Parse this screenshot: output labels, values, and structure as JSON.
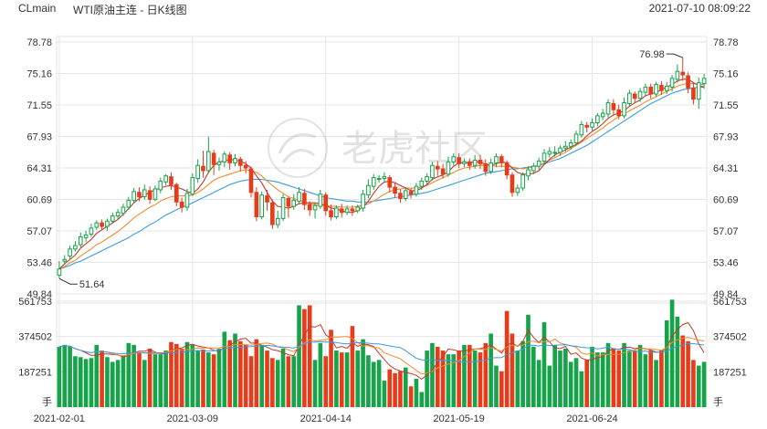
{
  "header": {
    "symbol": "CLmain",
    "title": "WTI原油主连 - 日K线图",
    "datetime": "2021-07-10 08:09:22"
  },
  "watermark": {
    "text": "老虎社区",
    "icon": "tiger-logo-icon"
  },
  "colors": {
    "up": "#16a34a",
    "down": "#e83b1a",
    "ma5": "#c0392b",
    "ma10": "#f08c2e",
    "ma20": "#3b9be0",
    "grid": "#e6e6e6",
    "text": "#333333"
  },
  "chart_data": [
    {
      "type": "candlestick",
      "yticks": [
        "78.78",
        "75.16",
        "71.55",
        "67.93",
        "64.31",
        "60.69",
        "57.07",
        "53.46",
        "49.84"
      ],
      "ylim": [
        49.84,
        78.78
      ],
      "xticks": [
        "2021-02-01",
        "2021-03-09",
        "2021-04-14",
        "2021-05-19",
        "2021-06-24"
      ],
      "annotations": {
        "high_label": "76.98",
        "low_label": "51.64"
      },
      "candles": [
        [
          52.0,
          52.7,
          51.6,
          53.6
        ],
        [
          53.6,
          53.8,
          53.2,
          54.3
        ],
        [
          54.2,
          55.0,
          53.8,
          55.4
        ],
        [
          55.0,
          55.4,
          54.7,
          55.9
        ],
        [
          55.5,
          56.4,
          55.2,
          56.9
        ],
        [
          56.3,
          56.6,
          55.8,
          57.1
        ],
        [
          56.7,
          57.4,
          56.4,
          57.9
        ],
        [
          57.5,
          58.0,
          57.2,
          58.3
        ],
        [
          58.0,
          57.6,
          57.2,
          58.4
        ],
        [
          57.6,
          58.2,
          57.1,
          58.5
        ],
        [
          58.2,
          58.8,
          57.9,
          59.2
        ],
        [
          58.8,
          59.2,
          58.4,
          59.6
        ],
        [
          59.1,
          59.8,
          58.8,
          60.2
        ],
        [
          59.8,
          60.6,
          59.5,
          61.0
        ],
        [
          60.6,
          61.6,
          60.3,
          62.0
        ],
        [
          61.5,
          61.0,
          60.5,
          62.1
        ],
        [
          61.0,
          61.8,
          60.7,
          62.4
        ],
        [
          61.7,
          60.7,
          60.2,
          62.2
        ],
        [
          60.7,
          61.9,
          60.5,
          62.3
        ],
        [
          61.8,
          62.8,
          61.4,
          63.2
        ],
        [
          62.7,
          63.4,
          62.3,
          63.6
        ],
        [
          63.3,
          62.4,
          61.8,
          63.8
        ],
        [
          62.4,
          60.4,
          59.9,
          62.6
        ],
        [
          60.4,
          59.8,
          59.2,
          60.9
        ],
        [
          59.8,
          61.4,
          59.4,
          61.9
        ],
        [
          61.3,
          63.2,
          61.1,
          63.7
        ],
        [
          63.1,
          64.6,
          62.6,
          65.3
        ],
        [
          64.5,
          64.0,
          63.2,
          66.3
        ],
        [
          64.0,
          66.2,
          63.7,
          67.9
        ],
        [
          66.0,
          64.7,
          63.5,
          66.4
        ],
        [
          64.7,
          65.0,
          64.0,
          65.5
        ],
        [
          65.0,
          65.9,
          64.4,
          66.2
        ],
        [
          65.8,
          64.9,
          64.1,
          66.1
        ],
        [
          64.9,
          65.4,
          64.5,
          65.9
        ],
        [
          65.3,
          64.6,
          63.9,
          65.6
        ],
        [
          64.6,
          64.3,
          63.7,
          65.1
        ],
        [
          64.2,
          61.5,
          60.9,
          64.5
        ],
        [
          61.5,
          58.7,
          58.2,
          62.1
        ],
        [
          58.7,
          61.2,
          58.4,
          61.6
        ],
        [
          61.1,
          60.4,
          59.4,
          61.8
        ],
        [
          60.3,
          57.8,
          57.3,
          60.7
        ],
        [
          57.8,
          58.5,
          57.4,
          59.4
        ],
        [
          58.5,
          60.9,
          58.2,
          61.3
        ],
        [
          60.8,
          59.9,
          58.6,
          61.0
        ],
        [
          59.9,
          60.6,
          59.5,
          61.3
        ],
        [
          60.5,
          61.5,
          60.2,
          62.1
        ],
        [
          61.4,
          60.1,
          59.5,
          61.9
        ],
        [
          60.1,
          59.5,
          58.8,
          60.5
        ],
        [
          59.5,
          60.0,
          58.5,
          60.3
        ],
        [
          59.9,
          61.3,
          59.6,
          61.8
        ],
        [
          61.2,
          59.4,
          58.8,
          61.5
        ],
        [
          59.4,
          58.7,
          58.3,
          60.1
        ],
        [
          58.7,
          59.7,
          58.4,
          60.0
        ],
        [
          59.6,
          59.2,
          58.6,
          60.2
        ],
        [
          59.2,
          59.6,
          58.9,
          60.0
        ],
        [
          59.6,
          59.4,
          58.8,
          60.0
        ],
        [
          59.4,
          59.8,
          59.1,
          60.1
        ],
        [
          59.7,
          61.3,
          59.3,
          61.8
        ],
        [
          61.2,
          62.3,
          60.8,
          63.0
        ],
        [
          62.2,
          63.2,
          61.8,
          63.6
        ],
        [
          63.1,
          63.1,
          62.6,
          63.5
        ],
        [
          63.1,
          63.3,
          62.6,
          63.8
        ],
        [
          63.2,
          62.1,
          61.5,
          63.5
        ],
        [
          62.1,
          61.4,
          60.9,
          62.7
        ],
        [
          61.4,
          60.8,
          60.3,
          61.9
        ],
        [
          60.8,
          61.7,
          60.5,
          62.1
        ],
        [
          61.6,
          61.3,
          60.8,
          62.0
        ],
        [
          61.3,
          62.2,
          61.0,
          62.6
        ],
        [
          62.2,
          62.8,
          61.8,
          63.2
        ],
        [
          62.8,
          63.3,
          62.4,
          63.7
        ],
        [
          63.2,
          64.6,
          62.9,
          65.0
        ],
        [
          64.5,
          64.2,
          63.4,
          65.1
        ],
        [
          64.2,
          63.6,
          63.1,
          64.8
        ],
        [
          63.6,
          65.0,
          63.3,
          65.6
        ],
        [
          65.0,
          65.6,
          64.6,
          66.0
        ],
        [
          65.5,
          64.8,
          64.3,
          66.0
        ],
        [
          64.8,
          65.0,
          64.4,
          65.4
        ],
        [
          65.0,
          64.6,
          64.1,
          65.4
        ],
        [
          64.6,
          65.2,
          64.2,
          65.8
        ],
        [
          65.2,
          64.8,
          64.2,
          65.8
        ],
        [
          64.8,
          63.9,
          63.4,
          65.3
        ],
        [
          63.9,
          64.9,
          63.6,
          65.4
        ],
        [
          64.9,
          65.6,
          64.4,
          66.0
        ],
        [
          65.6,
          64.9,
          64.4,
          65.9
        ],
        [
          64.9,
          63.5,
          63.0,
          65.2
        ],
        [
          63.5,
          61.5,
          61.0,
          63.8
        ],
        [
          61.5,
          62.0,
          61.1,
          62.4
        ],
        [
          62.0,
          63.5,
          61.7,
          63.8
        ],
        [
          63.4,
          64.1,
          62.9,
          64.5
        ],
        [
          64.0,
          64.5,
          63.6,
          64.9
        ],
        [
          64.5,
          65.1,
          64.1,
          65.5
        ],
        [
          65.1,
          66.0,
          64.7,
          66.5
        ],
        [
          65.9,
          66.2,
          65.5,
          66.7
        ],
        [
          66.1,
          66.1,
          65.6,
          66.8
        ],
        [
          66.1,
          66.6,
          65.7,
          66.9
        ],
        [
          66.6,
          66.8,
          66.2,
          67.4
        ],
        [
          66.8,
          67.2,
          66.4,
          67.6
        ],
        [
          67.2,
          68.2,
          66.9,
          68.6
        ],
        [
          68.1,
          69.3,
          67.8,
          69.7
        ],
        [
          69.2,
          69.0,
          68.4,
          69.6
        ],
        [
          69.0,
          69.5,
          68.6,
          70.0
        ],
        [
          69.5,
          70.3,
          69.1,
          70.6
        ],
        [
          70.2,
          70.6,
          69.8,
          71.1
        ],
        [
          70.5,
          71.8,
          70.1,
          72.2
        ],
        [
          71.7,
          71.0,
          70.4,
          72.2
        ],
        [
          71.0,
          70.3,
          69.9,
          71.6
        ],
        [
          70.3,
          71.8,
          70.0,
          72.4
        ],
        [
          71.7,
          72.9,
          71.4,
          73.3
        ],
        [
          72.8,
          72.3,
          71.8,
          73.1
        ],
        [
          72.3,
          73.1,
          71.9,
          73.5
        ],
        [
          73.0,
          73.6,
          72.6,
          74.0
        ],
        [
          73.6,
          72.8,
          72.3,
          74.0
        ],
        [
          72.8,
          73.9,
          72.5,
          74.2
        ],
        [
          73.8,
          73.2,
          72.7,
          74.3
        ],
        [
          73.2,
          73.7,
          72.8,
          74.2
        ],
        [
          73.6,
          74.6,
          73.1,
          75.0
        ],
        [
          74.5,
          75.4,
          74.1,
          76.2
        ],
        [
          75.3,
          75.0,
          74.3,
          76.98
        ],
        [
          74.9,
          73.5,
          72.9,
          75.3
        ],
        [
          73.5,
          72.2,
          71.6,
          74.1
        ],
        [
          72.2,
          74.1,
          71.1,
          74.7
        ],
        [
          74.0,
          74.6,
          73.4,
          75.1
        ]
      ],
      "ma5": [
        52.7,
        53.3,
        53.8,
        54.3,
        55.1,
        55.6,
        56.1,
        56.8,
        57.2,
        57.6,
        58.0,
        58.4,
        59.0,
        59.6,
        60.3,
        60.8,
        61.2,
        61.5,
        61.8,
        62.0,
        62.2,
        62.3,
        62.1,
        61.9,
        61.6,
        61.4,
        61.9,
        62.7,
        63.8,
        64.6,
        65.0,
        65.1,
        65.3,
        65.2,
        65.1,
        64.8,
        64.3,
        63.4,
        62.6,
        61.5,
        60.5,
        59.9,
        59.8,
        59.7,
        59.9,
        60.2,
        60.3,
        60.3,
        60.3,
        60.2,
        60.0,
        59.7,
        59.6,
        59.4,
        59.2,
        59.2,
        59.4,
        59.8,
        60.5,
        61.4,
        62.2,
        62.7,
        62.8,
        62.6,
        62.3,
        62.0,
        61.7,
        61.7,
        62.0,
        62.4,
        63.0,
        63.3,
        63.5,
        63.9,
        64.5,
        64.9,
        64.9,
        64.9,
        65.0,
        65.0,
        64.7,
        64.6,
        64.8,
        65.0,
        64.9,
        64.3,
        63.8,
        63.6,
        63.6,
        63.7,
        64.0,
        64.7,
        65.3,
        65.8,
        66.1,
        66.4,
        66.7,
        67.0,
        67.4,
        68.0,
        68.5,
        68.9,
        69.4,
        70.0,
        70.4,
        70.6,
        70.9,
        71.4,
        71.8,
        72.1,
        72.6,
        72.8,
        73.0,
        73.3,
        73.6,
        73.9,
        74.3,
        74.5,
        74.5,
        74.1,
        73.8,
        73.6
      ],
      "ma10": [
        52.7,
        53.0,
        53.4,
        53.7,
        54.2,
        54.6,
        55.0,
        55.5,
        55.8,
        56.2,
        56.6,
        57.0,
        57.5,
        58.0,
        58.6,
        59.0,
        59.4,
        59.8,
        60.1,
        60.5,
        60.8,
        61.0,
        61.1,
        61.1,
        61.1,
        61.2,
        61.5,
        61.9,
        62.4,
        62.9,
        63.2,
        63.4,
        63.6,
        63.8,
        64.0,
        64.1,
        64.0,
        63.8,
        63.4,
        62.8,
        62.3,
        61.8,
        61.4,
        61.0,
        60.8,
        60.6,
        60.4,
        60.2,
        60.1,
        60.0,
        60.0,
        59.9,
        59.9,
        59.8,
        59.8,
        59.8,
        59.9,
        60.0,
        60.2,
        60.5,
        60.9,
        61.3,
        61.6,
        61.8,
        61.9,
        62.0,
        62.0,
        62.0,
        62.1,
        62.3,
        62.6,
        62.9,
        63.2,
        63.5,
        63.8,
        64.1,
        64.3,
        64.4,
        64.5,
        64.6,
        64.6,
        64.6,
        64.5,
        64.5,
        64.5,
        64.4,
        64.3,
        64.2,
        64.3,
        64.4,
        64.6,
        64.9,
        65.2,
        65.5,
        65.8,
        66.1,
        66.5,
        66.9,
        67.3,
        67.7,
        68.1,
        68.5,
        68.9,
        69.4,
        69.8,
        70.2,
        70.5,
        70.9,
        71.2,
        71.5,
        71.9,
        72.2,
        72.5,
        72.8,
        73.1,
        73.4,
        73.7,
        73.9,
        74.0,
        74.0,
        73.9,
        73.9
      ],
      "ma20": [
        52.7,
        52.9,
        53.1,
        53.4,
        53.6,
        53.9,
        54.2,
        54.5,
        54.8,
        55.1,
        55.4,
        55.7,
        56.0,
        56.3,
        56.7,
        57.0,
        57.4,
        57.8,
        58.1,
        58.5,
        58.9,
        59.2,
        59.5,
        59.8,
        60.0,
        60.3,
        60.6,
        60.9,
        61.2,
        61.5,
        61.8,
        62.1,
        62.4,
        62.6,
        62.8,
        62.9,
        63.0,
        63.0,
        63.0,
        62.9,
        62.8,
        62.7,
        62.5,
        62.3,
        62.1,
        61.9,
        61.7,
        61.5,
        61.3,
        61.1,
        60.9,
        60.8,
        60.7,
        60.6,
        60.5,
        60.5,
        60.4,
        60.4,
        60.4,
        60.5,
        60.6,
        60.7,
        60.8,
        60.9,
        61.0,
        61.1,
        61.2,
        61.3,
        61.4,
        61.5,
        61.7,
        61.9,
        62.1,
        62.3,
        62.5,
        62.7,
        62.9,
        63.1,
        63.3,
        63.5,
        63.7,
        63.8,
        63.9,
        64.0,
        64.1,
        64.2,
        64.2,
        64.3,
        64.4,
        64.5,
        64.6,
        64.8,
        65.0,
        65.2,
        65.4,
        65.7,
        66.0,
        66.3,
        66.6,
        66.9,
        67.3,
        67.7,
        68.1,
        68.5,
        68.9,
        69.3,
        69.7,
        70.1,
        70.5,
        70.9,
        71.3,
        71.7,
        72.0,
        72.3,
        72.6,
        72.9,
        73.1,
        73.3,
        73.4,
        73.5,
        73.6,
        73.6
      ]
    },
    {
      "type": "bar",
      "yticks": [
        "561753",
        "374502",
        "187251"
      ],
      "ylim": [
        0,
        561753
      ],
      "unit": "手",
      "volumes": [
        320000,
        330000,
        320000,
        270000,
        265000,
        255000,
        260000,
        330000,
        300000,
        265000,
        240000,
        250000,
        275000,
        340000,
        330000,
        290000,
        250000,
        310000,
        280000,
        280000,
        300000,
        345000,
        335000,
        310000,
        345000,
        330000,
        300000,
        305000,
        290000,
        280000,
        310000,
        400000,
        355000,
        390000,
        350000,
        330000,
        270000,
        360000,
        330000,
        300000,
        260000,
        250000,
        310000,
        270000,
        270000,
        540000,
        520000,
        540000,
        250000,
        340000,
        270000,
        410000,
        300000,
        290000,
        290000,
        430000,
        300000,
        360000,
        275000,
        240000,
        250000,
        140000,
        200000,
        180000,
        190000,
        210000,
        110000,
        150000,
        80000,
        300000,
        340000,
        320000,
        300000,
        280000,
        280000,
        300000,
        330000,
        330000,
        300000,
        290000,
        340000,
        390000,
        220000,
        190000,
        510000,
        390000,
        300000,
        350000,
        490000,
        320000,
        250000,
        450000,
        220000,
        330000,
        300000,
        310000,
        240000,
        260000,
        190000,
        250000,
        320000,
        290000,
        290000,
        340000,
        310000,
        300000,
        340000,
        300000,
        300000,
        330000,
        280000,
        300000,
        250000,
        300000,
        460000,
        570000,
        480000,
        380000,
        350000,
        250000,
        220000,
        240000
      ]
    }
  ]
}
